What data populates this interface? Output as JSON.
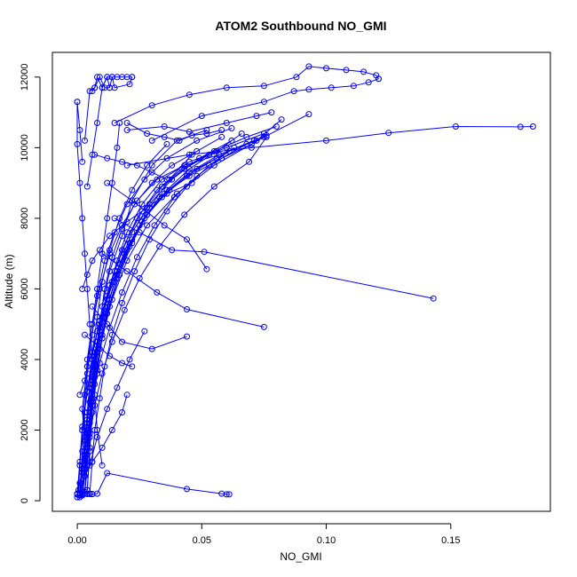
{
  "chart_data": {
    "type": "line",
    "title": "ATOM2 Southbound NO_GMI",
    "xlabel": "NO_GMI",
    "ylabel": "Altitude (m)",
    "xlim": [
      -0.01,
      0.19
    ],
    "ylim": [
      -300,
      12700
    ],
    "xticks": [
      0.0,
      0.05,
      0.1,
      0.15
    ],
    "xtick_labels": [
      "0.00",
      "0.05",
      "0.10",
      "0.15"
    ],
    "yticks": [
      0,
      2000,
      4000,
      6000,
      8000,
      10000,
      12000
    ],
    "ytick_labels": [
      "0",
      "2000",
      "4000",
      "6000",
      "8000",
      "10000",
      "12000"
    ],
    "grid": false,
    "marker": "open-circle",
    "line_color": "#0000ff",
    "series": [
      {
        "x": [
          0.001,
          0.002,
          0.003,
          0.002,
          0.004,
          0.006,
          0.008,
          0.01,
          0.012,
          0.014,
          0.016,
          0.017
        ],
        "y": [
          200,
          800,
          1600,
          2600,
          3800,
          5000,
          6000,
          7000,
          8000,
          9000,
          10000,
          10700
        ]
      },
      {
        "x": [
          0.002,
          0.003,
          0.004,
          0.005,
          0.006,
          0.008,
          0.01,
          0.013,
          0.018,
          0.022,
          0.03,
          0.04,
          0.052
        ],
        "y": [
          150,
          700,
          1500,
          2500,
          3500,
          4500,
          5500,
          6500,
          7500,
          8500,
          9500,
          10200,
          10500
        ]
      },
      {
        "x": [
          0.001,
          0.002,
          0.003,
          0.005,
          0.007,
          0.009,
          0.012,
          0.016,
          0.02,
          0.026,
          0.034,
          0.045,
          0.06,
          0.075
        ],
        "y": [
          200,
          900,
          1800,
          2800,
          3800,
          4800,
          5800,
          6800,
          7600,
          8400,
          9100,
          9600,
          10000,
          10400
        ]
      },
      {
        "x": [
          0.0005,
          0.001,
          0.002,
          0.003,
          0.004,
          0.006,
          0.009,
          0.013,
          0.018,
          0.024,
          0.032,
          0.043,
          0.057,
          0.072,
          0.082
        ],
        "y": [
          300,
          1000,
          2000,
          3000,
          4000,
          5000,
          6000,
          7000,
          7800,
          8500,
          9100,
          9500,
          9800,
          10200,
          10800
        ]
      },
      {
        "x": [
          0.003,
          0.004,
          0.005,
          0.006,
          0.008,
          0.01,
          0.014,
          0.019,
          0.025,
          0.033,
          0.045,
          0.058,
          0.07
        ],
        "y": [
          200,
          1200,
          2200,
          3200,
          4200,
          5200,
          6200,
          7000,
          7800,
          8600,
          9200,
          9700,
          10100
        ]
      },
      {
        "x": [
          0.002,
          0.003,
          0.005,
          0.007,
          0.01,
          0.014,
          0.02,
          0.028,
          0.04,
          0.055,
          0.075,
          0.093
        ],
        "y": [
          250,
          1300,
          2400,
          3500,
          4600,
          5700,
          6800,
          7800,
          8700,
          9500,
          10300,
          10950
        ]
      },
      {
        "x": [
          0.0,
          0.001,
          0.002,
          0.004,
          0.006,
          0.009,
          0.013,
          0.018,
          0.024,
          0.032,
          0.042,
          0.055,
          0.068,
          0.08
        ],
        "y": [
          180,
          1100,
          2100,
          3100,
          4100,
          5100,
          6100,
          7100,
          8000,
          8800,
          9400,
          9900,
          10300,
          10600
        ]
      },
      {
        "x": [
          0.001,
          0.002,
          0.003,
          0.004,
          0.006,
          0.008,
          0.011,
          0.015,
          0.02,
          0.027,
          0.036,
          0.048,
          0.062
        ],
        "y": [
          220,
          1400,
          2500,
          3600,
          4700,
          5800,
          6800,
          7600,
          8400,
          9100,
          9700,
          10200,
          10550
        ]
      },
      {
        "x": [
          0.004,
          0.005,
          0.006,
          0.007,
          0.009,
          0.011,
          0.014,
          0.018,
          0.023,
          0.03,
          0.038,
          0.048,
          0.058
        ],
        "y": [
          300,
          1500,
          2700,
          3900,
          5000,
          6000,
          6900,
          7700,
          8400,
          9000,
          9500,
          9900,
          10300
        ]
      },
      {
        "x": [
          0.002,
          0.003,
          0.004,
          0.006,
          0.008,
          0.011,
          0.015,
          0.02,
          0.026,
          0.034,
          0.043,
          0.053
        ],
        "y": [
          200,
          1200,
          2300,
          3400,
          4500,
          5500,
          6500,
          7400,
          8200,
          8900,
          9400,
          9800
        ]
      },
      {
        "x": [
          0.001,
          0.002,
          0.004,
          0.006,
          0.009,
          0.013,
          0.018,
          0.024,
          0.031,
          0.039,
          0.048,
          0.058,
          0.068
        ],
        "y": [
          160,
          1000,
          1900,
          2900,
          3900,
          4900,
          5900,
          6900,
          7800,
          8600,
          9200,
          9700,
          10100
        ]
      },
      {
        "x": [
          0.003,
          0.004,
          0.005,
          0.007,
          0.009,
          0.012,
          0.016,
          0.021,
          0.027,
          0.035,
          0.045,
          0.057,
          0.071
        ],
        "y": [
          250,
          1300,
          2300,
          3300,
          4300,
          5300,
          6300,
          7200,
          8000,
          8700,
          9300,
          9800,
          10200
        ]
      },
      {
        "x": [
          0.001,
          0.002,
          0.003,
          0.004,
          0.005,
          0.007,
          0.009,
          0.012,
          0.016,
          0.021,
          0.028,
          0.037,
          0.048,
          0.061,
          0.076
        ],
        "y": [
          200,
          900,
          1700,
          2500,
          3300,
          4100,
          4900,
          5700,
          6500,
          7300,
          8100,
          8800,
          9400,
          9900,
          10350
        ]
      },
      {
        "x": [
          0.002,
          0.004,
          0.006,
          0.008,
          0.011,
          0.015,
          0.02,
          0.026,
          0.034,
          0.044,
          0.056
        ],
        "y": [
          300,
          1600,
          2900,
          4100,
          5200,
          6200,
          7100,
          7900,
          8600,
          9200,
          9700
        ]
      },
      {
        "x": [
          0.0,
          0.001,
          0.002,
          0.004,
          0.007,
          0.011,
          0.016,
          0.022,
          0.029,
          0.037,
          0.046
        ],
        "y": [
          100,
          1000,
          2000,
          3100,
          4200,
          5300,
          6400,
          7400,
          8300,
          9100,
          9800
        ]
      },
      {
        "x": [
          0.005,
          0.006,
          0.007,
          0.009,
          0.011,
          0.014,
          0.018,
          0.023,
          0.029,
          0.036,
          0.044,
          0.053,
          0.063
        ],
        "y": [
          200,
          1100,
          2000,
          2900,
          3800,
          4700,
          5600,
          6500,
          7400,
          8200,
          8900,
          9500,
          10000
        ]
      },
      {
        "x": [
          0.002,
          0.003,
          0.004,
          0.005,
          0.006,
          0.008,
          0.01,
          0.013,
          0.017,
          0.022,
          0.028,
          0.036
        ],
        "y": [
          250,
          1200,
          2200,
          3200,
          4200,
          5200,
          6200,
          7100,
          8000,
          8800,
          9500,
          10100
        ]
      },
      {
        "x": [
          0.001,
          0.003,
          0.005,
          0.007,
          0.01,
          0.014,
          0.019,
          0.025,
          0.033,
          0.043,
          0.055,
          0.069,
          0.076
        ],
        "y": [
          150,
          900,
          1800,
          2700,
          3600,
          4500,
          5400,
          6300,
          7200,
          8100,
          8900,
          9600,
          10300
        ]
      },
      {
        "x": [
          0.004,
          0.005,
          0.006,
          0.008,
          0.01,
          0.013,
          0.017,
          0.022,
          0.029,
          0.038,
          0.049,
          0.062
        ],
        "y": [
          300,
          1400,
          2500,
          3600,
          4700,
          5700,
          6700,
          7600,
          8400,
          9100,
          9700,
          10200
        ]
      },
      {
        "x": [
          0.003,
          0.004,
          0.005,
          0.006,
          0.008,
          0.01,
          0.013,
          0.017,
          0.022,
          0.028,
          0.036,
          0.045,
          0.056,
          0.066
        ],
        "y": [
          200,
          1000,
          1900,
          2800,
          3700,
          4600,
          5500,
          6400,
          7300,
          8100,
          8800,
          9400,
          9900,
          10400
        ]
      },
      {
        "x": [
          0.0,
          0.0,
          0.001,
          0.002,
          0.003,
          0.004,
          0.005,
          0.006,
          0.007,
          0.008,
          0.01
        ],
        "y": [
          11300,
          10100,
          9000,
          8000,
          7000,
          6000,
          5000,
          4000,
          3000,
          2000,
          1000
        ]
      },
      {
        "x": [
          0.0,
          0.001,
          0.002
        ],
        "y": [
          11300,
          10500,
          9600
        ]
      },
      {
        "x": [
          0.004,
          0.006,
          0.008,
          0.01,
          0.012,
          0.014,
          0.016,
          0.018,
          0.02,
          0.022
        ],
        "y": [
          8900,
          9800,
          10700,
          11700,
          12000,
          12000,
          12000,
          12000,
          12000,
          12000
        ]
      },
      {
        "x": [
          0.006,
          0.007,
          0.009,
          0.011,
          0.013,
          0.014,
          0.015,
          0.021,
          0.022
        ],
        "y": [
          11600,
          11700,
          12000,
          11700,
          11700,
          12000,
          11700,
          11800,
          12000
        ]
      },
      {
        "x": [
          0.003,
          0.005,
          0.007,
          0.008,
          0.01,
          0.012,
          0.013
        ],
        "y": [
          10200,
          11600,
          11700,
          12000,
          11700,
          12000,
          11700
        ]
      },
      {
        "x": [
          0.015,
          0.03,
          0.045,
          0.06,
          0.075,
          0.088,
          0.093,
          0.1,
          0.108,
          0.115,
          0.12,
          0.121
        ],
        "y": [
          10700,
          11200,
          11500,
          11700,
          11750,
          12000,
          12300,
          12250,
          12200,
          12150,
          12050,
          11950
        ]
      },
      {
        "x": [
          0.03,
          0.05,
          0.075,
          0.087,
          0.093,
          0.102,
          0.111,
          0.117,
          0.121
        ],
        "y": [
          10200,
          10900,
          11300,
          11600,
          11650,
          11700,
          11750,
          11850,
          11950
        ]
      },
      {
        "x": [
          0.02,
          0.045,
          0.07,
          0.1,
          0.125,
          0.152,
          0.178,
          0.183
        ],
        "y": [
          9500,
          9800,
          10000,
          10200,
          10420,
          10600,
          10590,
          10600
        ]
      },
      {
        "x": [
          0.015,
          0.025,
          0.038,
          0.051,
          0.143
        ],
        "y": [
          8000,
          7600,
          7100,
          7050,
          5730
        ]
      },
      {
        "x": [
          0.012,
          0.022,
          0.035,
          0.044,
          0.052
        ],
        "y": [
          9000,
          8500,
          7800,
          7400,
          6560
        ]
      },
      {
        "x": [
          0.01,
          0.02,
          0.032,
          0.044,
          0.075
        ],
        "y": [
          7000,
          6500,
          5900,
          5420,
          4920
        ]
      },
      {
        "x": [
          0.006,
          0.012,
          0.018,
          0.03,
          0.044
        ],
        "y": [
          5500,
          5000,
          4500,
          4300,
          4650
        ]
      },
      {
        "x": [
          0.003,
          0.008,
          0.013,
          0.018,
          0.022
        ],
        "y": [
          4700,
          4400,
          4100,
          3900,
          3800
        ]
      },
      {
        "x": [
          0.002,
          0.004,
          0.006,
          0.008,
          0.012,
          0.044,
          0.058,
          0.06,
          0.061
        ],
        "y": [
          200,
          190,
          185,
          200,
          780,
          330,
          200,
          180,
          180
        ]
      },
      {
        "x": [
          0.001,
          0.002,
          0.003,
          0.004,
          0.005,
          0.006
        ],
        "y": [
          100,
          180,
          200,
          200,
          190,
          190
        ]
      },
      {
        "x": [
          0.0,
          0.001,
          0.002,
          0.003,
          0.004
        ],
        "y": [
          200,
          500,
          900,
          1400,
          2000
        ]
      },
      {
        "x": [
          0.007,
          0.012,
          0.018,
          0.024,
          0.03,
          0.036
        ],
        "y": [
          9800,
          9700,
          9600,
          9500,
          9300,
          9100
        ]
      },
      {
        "x": [
          0.02,
          0.028,
          0.035,
          0.041,
          0.046,
          0.052,
          0.058
        ],
        "y": [
          10700,
          10400,
          10300,
          10200,
          10350,
          10400,
          10500
        ]
      },
      {
        "x": [
          0.02,
          0.035,
          0.045,
          0.06,
          0.072,
          0.078
        ],
        "y": [
          10500,
          10600,
          10450,
          10700,
          10900,
          11000
        ]
      },
      {
        "x": [
          0.001,
          0.003,
          0.004,
          0.006,
          0.008,
          0.011
        ],
        "y": [
          3000,
          3400,
          3800,
          4200,
          4800,
          5500
        ]
      },
      {
        "x": [
          0.002,
          0.004,
          0.006,
          0.009,
          0.013,
          0.02,
          0.028,
          0.036,
          0.046
        ],
        "y": [
          6000,
          6400,
          6800,
          7100,
          7500,
          7900,
          8300,
          8700,
          9000
        ]
      },
      {
        "x": [
          0.005,
          0.008,
          0.012,
          0.016,
          0.021,
          0.027
        ],
        "y": [
          1000,
          1800,
          2600,
          3200,
          4000,
          4800
        ]
      },
      {
        "x": [
          0.003,
          0.006,
          0.01,
          0.014,
          0.018,
          0.02
        ],
        "y": [
          700,
          1100,
          1500,
          2000,
          2500,
          3000
        ]
      }
    ]
  }
}
